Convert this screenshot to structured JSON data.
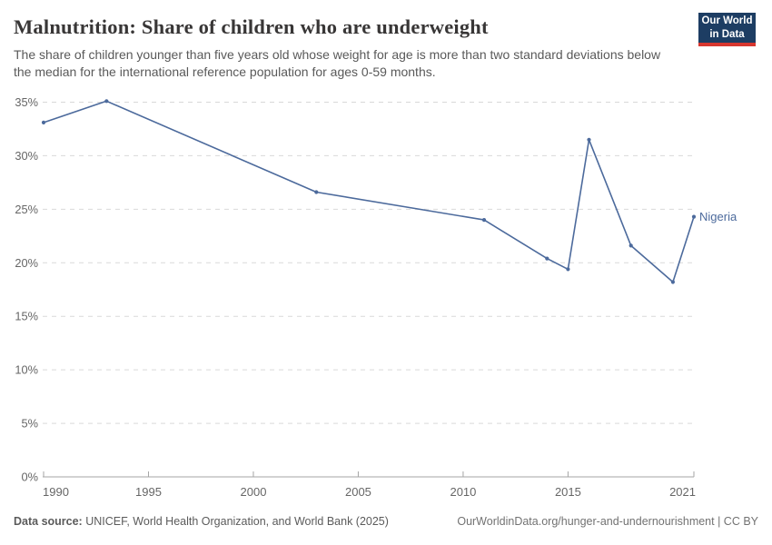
{
  "header": {
    "title": "Malnutrition: Share of children who are underweight",
    "subtitle": "The share of children younger than five years old whose weight for age is more than two standard deviations below the median for the international reference population for ages 0-59 months.",
    "logo": {
      "line1": "Our World",
      "line2": "in Data",
      "bg_color": "#1d3d63",
      "accent_color": "#d7362f"
    }
  },
  "chart_data": {
    "type": "line",
    "title": "Malnutrition: Share of children who are underweight",
    "xlabel": "",
    "ylabel": "",
    "xlim": [
      1990,
      2021
    ],
    "ylim": [
      0,
      35
    ],
    "xticks": [
      1990,
      1995,
      2000,
      2005,
      2010,
      2015,
      2021
    ],
    "yticks": [
      0,
      5,
      10,
      15,
      20,
      25,
      30,
      35
    ],
    "ytick_suffix": "%",
    "grid": "horizontal-dashed",
    "legend_position": "line-end-label",
    "colors": {
      "grid": "#d9d9d9",
      "axis": "#a5a5a5",
      "tick_label": "#666666"
    },
    "series": [
      {
        "name": "Nigeria",
        "color": "#4c6a9c",
        "points": [
          [
            1990,
            33.1
          ],
          [
            1993,
            35.1
          ],
          [
            2003,
            26.6
          ],
          [
            2011,
            24.0
          ],
          [
            2014,
            20.4
          ],
          [
            2015,
            19.4
          ],
          [
            2016,
            31.5
          ],
          [
            2018,
            21.6
          ],
          [
            2020,
            18.2
          ],
          [
            2021,
            24.3
          ]
        ]
      }
    ]
  },
  "footer": {
    "data_source_label": "Data source:",
    "data_source": " UNICEF, World Health Organization, and World Bank (2025)",
    "link": "OurWorldinData.org/hunger-and-undernourishment | CC BY"
  }
}
